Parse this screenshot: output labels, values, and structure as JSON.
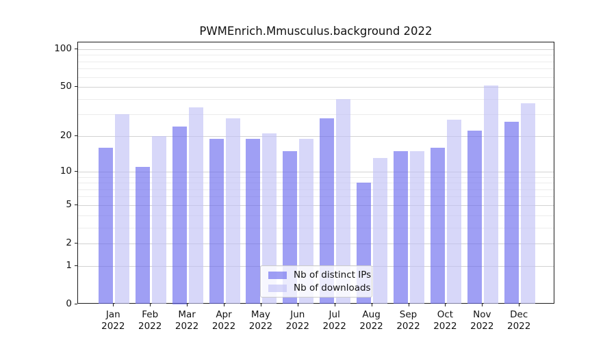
{
  "title": "PWMEnrich.Mmusculus.background 2022",
  "chart_data": {
    "type": "bar",
    "title": "PWMEnrich.Mmusculus.background 2022",
    "categories": [
      "Jan",
      "Feb",
      "Mar",
      "Apr",
      "May",
      "Jun",
      "Jul",
      "Aug",
      "Sep",
      "Oct",
      "Nov",
      "Dec"
    ],
    "x_year": "2022",
    "series": [
      {
        "name": "Nb of distinct IPs",
        "color": "rgba(100,100,238,0.62)",
        "values": [
          16,
          11,
          24,
          19,
          19,
          15,
          28,
          8,
          15,
          16,
          22,
          26
        ]
      },
      {
        "name": "Nb of downloads",
        "color": "rgba(190,190,245,0.62)",
        "values": [
          30,
          20,
          34,
          28,
          21,
          19,
          40,
          13,
          15,
          27,
          51,
          37
        ]
      }
    ],
    "y_scale": "log1p",
    "y_ticks": [
      0,
      1,
      2,
      5,
      10,
      20,
      50,
      100
    ],
    "y_minor_ticks": [
      3,
      4,
      6,
      7,
      8,
      9,
      30,
      40,
      60,
      70,
      80,
      90
    ],
    "ylim": [
      0,
      113
    ],
    "grid": true,
    "legend_position": "lower center",
    "colors": {
      "grid_major": "#d2d2d2",
      "grid_minor": "#ececec",
      "axis": "#1a1a1a",
      "legend_border": "#cccccc"
    }
  }
}
